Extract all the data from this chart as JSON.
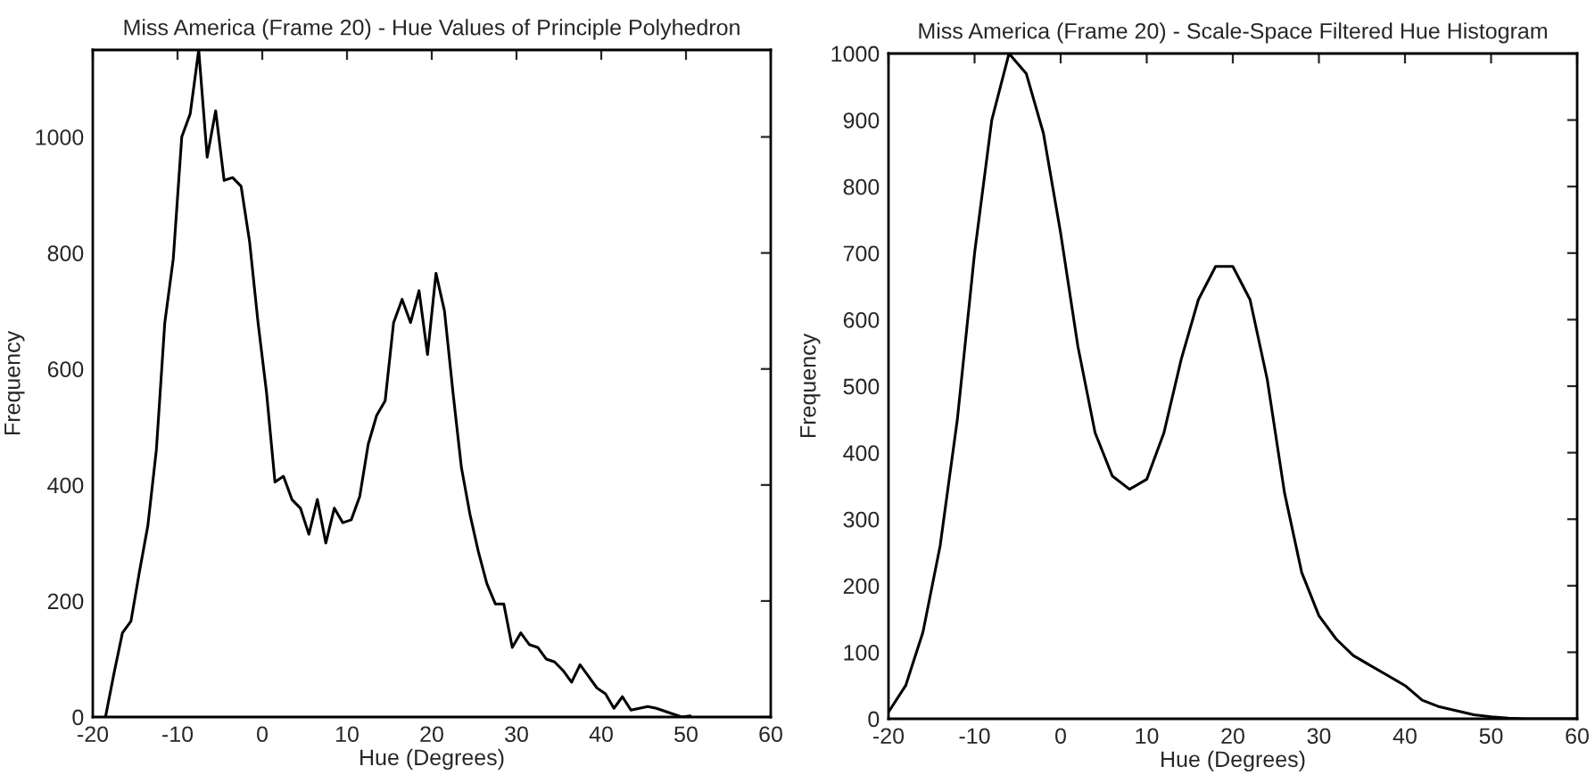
{
  "chart_data": [
    {
      "type": "line",
      "title": "Miss America (Frame 20) - Hue Values of Principle Polyhedron",
      "xlabel": "Hue (Degrees)",
      "ylabel": "Frequency",
      "xlim": [
        -20,
        60
      ],
      "ylim": [
        0,
        1150
      ],
      "xticks": [
        -20,
        -10,
        0,
        10,
        20,
        30,
        40,
        50,
        60
      ],
      "yticks": [
        0,
        200,
        400,
        600,
        800,
        1000
      ],
      "grid": false,
      "legend": false,
      "series": [
        {
          "color": "#000000",
          "x": [
            -18.5,
            -17.5,
            -16.5,
            -15.5,
            -14.5,
            -13.5,
            -12.5,
            -11.5,
            -10.5,
            -9.5,
            -8.5,
            -7.5,
            -6.5,
            -5.5,
            -4.5,
            -3.5,
            -2.5,
            -1.5,
            -0.5,
            0.5,
            1.5,
            2.5,
            3.5,
            4.5,
            5.5,
            6.5,
            7.5,
            8.5,
            9.5,
            10.5,
            11.5,
            12.5,
            13.5,
            14.5,
            15.5,
            16.5,
            17.5,
            18.5,
            19.5,
            20.5,
            21.5,
            22.5,
            23.5,
            24.5,
            25.5,
            26.5,
            27.5,
            28.5,
            29.5,
            30.5,
            31.5,
            32.5,
            33.5,
            34.5,
            35.5,
            36.5,
            37.5,
            38.5,
            39.5,
            40.5,
            41.5,
            42.5,
            43.5,
            44.5,
            45.5,
            46.5,
            47.5,
            48.5,
            49.5,
            50.5
          ],
          "values": [
            0,
            75,
            145,
            165,
            250,
            330,
            460,
            680,
            790,
            1000,
            1040,
            1150,
            965,
            1045,
            925,
            930,
            915,
            820,
            680,
            560,
            405,
            415,
            375,
            360,
            315,
            375,
            300,
            360,
            335,
            340,
            380,
            470,
            520,
            545,
            680,
            720,
            680,
            735,
            625,
            765,
            700,
            560,
            430,
            350,
            285,
            230,
            195,
            195,
            120,
            145,
            125,
            120,
            100,
            95,
            80,
            60,
            90,
            70,
            50,
            40,
            15,
            35,
            12,
            15,
            18,
            15,
            10,
            5,
            0,
            2
          ]
        }
      ]
    },
    {
      "type": "line",
      "title": "Miss America (Frame 20) - Scale-Space Filtered Hue Histogram",
      "xlabel": "Hue (Degrees)",
      "ylabel": "Frequency",
      "xlim": [
        -20,
        60
      ],
      "ylim": [
        0,
        1000
      ],
      "xticks": [
        -20,
        -10,
        0,
        10,
        20,
        30,
        40,
        50,
        60
      ],
      "yticks": [
        0,
        100,
        200,
        300,
        400,
        500,
        600,
        700,
        800,
        900,
        1000
      ],
      "grid": false,
      "legend": false,
      "series": [
        {
          "color": "#000000",
          "x": [
            -20,
            -18,
            -16,
            -14,
            -12,
            -10,
            -8,
            -6,
            -4,
            -2,
            0,
            2,
            4,
            6,
            8,
            10,
            12,
            14,
            16,
            18,
            20,
            22,
            24,
            26,
            28,
            30,
            32,
            34,
            36,
            38,
            40,
            42,
            44,
            46,
            48,
            50,
            52,
            54,
            56,
            60
          ],
          "values": [
            10,
            50,
            130,
            260,
            450,
            700,
            900,
            1000,
            970,
            880,
            730,
            560,
            430,
            365,
            345,
            360,
            430,
            540,
            630,
            680,
            680,
            630,
            510,
            340,
            220,
            155,
            120,
            95,
            80,
            65,
            50,
            28,
            18,
            12,
            6,
            3,
            1,
            0,
            0,
            0
          ]
        }
      ]
    }
  ]
}
